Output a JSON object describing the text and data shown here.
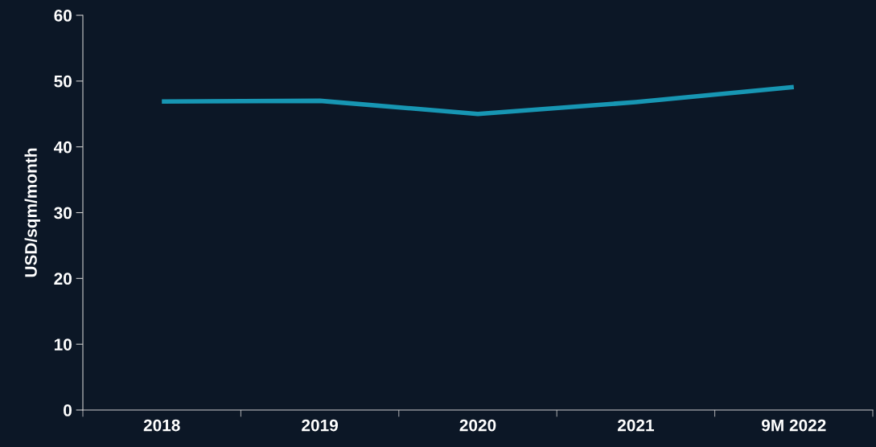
{
  "chart_data": {
    "type": "line",
    "ylabel": "USD/sqm/month",
    "categories": [
      "2018",
      "2019",
      "2020",
      "2021",
      "9M 2022"
    ],
    "series": [
      {
        "color": "#1796b3",
        "values": [
          46.9,
          47.0,
          45.0,
          46.8,
          49.1
        ]
      }
    ],
    "ylim": [
      0,
      60
    ],
    "yticks": [
      0,
      10,
      20,
      30,
      40,
      50,
      60
    ],
    "grid": false,
    "marker": "none",
    "line_style": "solid"
  }
}
